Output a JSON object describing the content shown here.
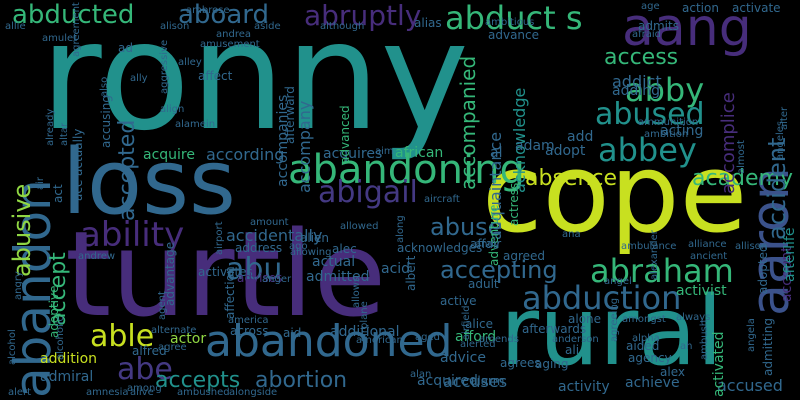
{
  "colors": {
    "background": "#000000",
    "teal": "#21918c",
    "lime": "#c8e020",
    "purple": "#472d7b",
    "blue": "#31688e",
    "green": "#35b779",
    "yellow_green": "#90d743"
  },
  "words": [
    {
      "text": "ronny",
      "color": "#21918c",
      "weight": 100
    },
    {
      "text": "cope",
      "color": "#c8e020",
      "weight": 95
    },
    {
      "text": "turtle",
      "color": "#472d7b",
      "weight": 92
    },
    {
      "text": "loss",
      "color": "#31688e",
      "weight": 90
    },
    {
      "text": "rural",
      "color": "#21918c",
      "weight": 88
    },
    {
      "text": "aang",
      "color": "#472d7b",
      "weight": 60
    },
    {
      "text": "aaron",
      "color": "#3b528b",
      "weight": 58
    },
    {
      "text": "abandoning",
      "color": "#35b779",
      "weight": 56
    },
    {
      "text": "abandoned",
      "color": "#31688e",
      "weight": 54
    },
    {
      "text": "abandon",
      "color": "#31688e",
      "weight": 52
    },
    {
      "text": "abduction",
      "color": "#31688e",
      "weight": 45
    },
    {
      "text": "abraham",
      "color": "#35b779",
      "weight": 45
    },
    {
      "text": "abigail",
      "color": "#443983",
      "weight": 44
    },
    {
      "text": "ability",
      "color": "#472d7b",
      "weight": 43
    },
    {
      "text": "abbey",
      "color": "#21918c",
      "weight": 42
    },
    {
      "text": "abby",
      "color": "#35b779",
      "weight": 42
    },
    {
      "text": "abused",
      "color": "#21918c",
      "weight": 40
    },
    {
      "text": "abduct s",
      "color": "#35b779",
      "weight": 40
    },
    {
      "text": "abducted",
      "color": "#35b779",
      "weight": 38
    },
    {
      "text": "aboard",
      "color": "#31688e",
      "weight": 38
    },
    {
      "text": "abruptly",
      "color": "#472d7b",
      "weight": 36
    },
    {
      "text": "abusive",
      "color": "#90d743",
      "weight": 34
    },
    {
      "text": "able",
      "color": "#c8e020",
      "weight": 34
    },
    {
      "text": "abu",
      "color": "#31688e",
      "weight": 34
    },
    {
      "text": "abe",
      "color": "#443983",
      "weight": 34
    },
    {
      "text": "abuse",
      "color": "#31688e",
      "weight": 30
    },
    {
      "text": "absence",
      "color": "#c8e020",
      "weight": 30
    },
    {
      "text": "academy",
      "color": "#35b779",
      "weight": 28
    },
    {
      "text": "accident",
      "color": "#31688e",
      "weight": 28
    },
    {
      "text": "access",
      "color": "#35b779",
      "weight": 28
    },
    {
      "text": "accepting",
      "color": "#31688e",
      "weight": 26
    },
    {
      "text": "accepts",
      "color": "#21918c",
      "weight": 26
    },
    {
      "text": "abortion",
      "color": "#31688e",
      "weight": 26
    },
    {
      "text": "accept",
      "color": "#35b779",
      "weight": 24
    },
    {
      "text": "accepted",
      "color": "#31688e",
      "weight": 24
    },
    {
      "text": "accused",
      "color": "#31688e",
      "weight": 20
    },
    {
      "text": "accuses",
      "color": "#31688e",
      "weight": 20
    },
    {
      "text": "accompanied",
      "color": "#35b779",
      "weight": 20
    },
    {
      "text": "accomplice",
      "color": "#472d7b",
      "weight": 20
    },
    {
      "text": "accidentally",
      "color": "#31688e",
      "weight": 18
    },
    {
      "text": "according",
      "color": "#31688e",
      "weight": 18
    },
    {
      "text": "acknowledge",
      "color": "#21918c",
      "weight": 18
    },
    {
      "text": "acquaintance",
      "color": "#31688e",
      "weight": 16
    },
    {
      "text": "actress",
      "color": "#35b779",
      "weight": 16
    },
    {
      "text": "adventure",
      "color": "#35b779",
      "weight": 16
    },
    {
      "text": "addict",
      "color": "#31688e",
      "weight": 16
    },
    {
      "text": "adding",
      "color": "#31688e",
      "weight": 16
    },
    {
      "text": "acting",
      "color": "#31688e",
      "weight": 16
    },
    {
      "text": "account",
      "color": "#472d7b",
      "weight": 16
    },
    {
      "text": "afterlife",
      "color": "#21918c",
      "weight": 16
    },
    {
      "text": "accompany",
      "color": "#31688e",
      "weight": 16
    },
    {
      "text": "accompanies",
      "color": "#31688e",
      "weight": 16
    },
    {
      "text": "acid",
      "color": "#31688e",
      "weight": 16
    },
    {
      "text": "acquires",
      "color": "#31688e",
      "weight": 16
    },
    {
      "text": "acquire",
      "color": "#35b779",
      "weight": 16
    },
    {
      "text": "acquired",
      "color": "#31688e",
      "weight": 16
    },
    {
      "text": "activist",
      "color": "#35b779",
      "weight": 16
    },
    {
      "text": "activity",
      "color": "#31688e",
      "weight": 16
    },
    {
      "text": "achieve",
      "color": "#31688e",
      "weight": 16
    },
    {
      "text": "actor",
      "color": "#90d743",
      "weight": 16
    },
    {
      "text": "actual",
      "color": "#31688e",
      "weight": 16
    },
    {
      "text": "admitted",
      "color": "#31688e",
      "weight": 16
    },
    {
      "text": "additional",
      "color": "#31688e",
      "weight": 16
    },
    {
      "text": "advice",
      "color": "#31688e",
      "weight": 16
    },
    {
      "text": "afford",
      "color": "#35b779",
      "weight": 16
    },
    {
      "text": "addition",
      "color": "#c8e020",
      "weight": 16
    },
    {
      "text": "admiral",
      "color": "#31688e",
      "weight": 16
    },
    {
      "text": "african",
      "color": "#35b779",
      "weight": 16
    },
    {
      "text": "adopt",
      "color": "#31688e",
      "weight": 16
    },
    {
      "text": "adam",
      "color": "#31688e",
      "weight": 16
    },
    {
      "text": "al",
      "color": "#31688e",
      "weight": 16
    },
    {
      "text": "add",
      "color": "#31688e",
      "weight": 16
    },
    {
      "text": "advanced",
      "color": "#35b779",
      "weight": 14
    },
    {
      "text": "address",
      "color": "#31688e",
      "weight": 14
    },
    {
      "text": "activates",
      "color": "#31688e",
      "weight": 14
    },
    {
      "text": "advises",
      "color": "#472d7b",
      "weight": 14
    },
    {
      "text": "active",
      "color": "#31688e",
      "weight": 14
    },
    {
      "text": "adult",
      "color": "#31688e",
      "weight": 14
    },
    {
      "text": "affair",
      "color": "#31688e",
      "weight": 14
    },
    {
      "text": "adoptive",
      "color": "#35b779",
      "weight": 14
    },
    {
      "text": "adopted",
      "color": "#31688e",
      "weight": 14
    },
    {
      "text": "activated",
      "color": "#35b779",
      "weight": 14
    },
    {
      "text": "agrees",
      "color": "#31688e",
      "weight": 14
    },
    {
      "text": "aging",
      "color": "#31688e",
      "weight": 14
    },
    {
      "text": "ali",
      "color": "#31688e",
      "weight": 14
    },
    {
      "text": "alarm",
      "color": "#31688e",
      "weight": 14
    },
    {
      "text": "agency",
      "color": "#31688e",
      "weight": 14
    },
    {
      "text": "aided",
      "color": "#31688e",
      "weight": 14
    },
    {
      "text": "alex",
      "color": "#31688e",
      "weight": 14
    },
    {
      "text": "alone",
      "color": "#31688e",
      "weight": 14
    },
    {
      "text": "alien",
      "color": "#31688e",
      "weight": 14
    },
    {
      "text": "alec",
      "color": "#31688e",
      "weight": 14
    },
    {
      "text": "agreed",
      "color": "#31688e",
      "weight": 14
    },
    {
      "text": "acknowledges",
      "color": "#31688e",
      "weight": 14
    },
    {
      "text": "afterwards",
      "color": "#31688e",
      "weight": 14
    },
    {
      "text": "alice",
      "color": "#31688e",
      "weight": 14
    },
    {
      "text": "aid",
      "color": "#31688e",
      "weight": 14
    },
    {
      "text": "across",
      "color": "#31688e",
      "weight": 14
    },
    {
      "text": "ace",
      "color": "#31688e",
      "weight": 14
    },
    {
      "text": "act",
      "color": "#31688e",
      "weight": 14
    },
    {
      "text": "actually",
      "color": "#31688e",
      "weight": 14
    },
    {
      "text": "accusing",
      "color": "#31688e",
      "weight": 14
    },
    {
      "text": "action",
      "color": "#31688e",
      "weight": 14
    },
    {
      "text": "activate",
      "color": "#31688e",
      "weight": 14
    },
    {
      "text": "admits",
      "color": "#31688e",
      "weight": 14
    },
    {
      "text": "advance",
      "color": "#31688e",
      "weight": 14
    },
    {
      "text": "advantage",
      "color": "#31688e",
      "weight": 14
    },
    {
      "text": "affection",
      "color": "#31688e",
      "weight": 14
    },
    {
      "text": "admitting",
      "color": "#31688e",
      "weight": 14
    },
    {
      "text": "affect",
      "color": "#31688e",
      "weight": 14
    },
    {
      "text": "afterward",
      "color": "#31688e",
      "weight": 14
    },
    {
      "text": "alternate",
      "color": "#31688e",
      "weight": 12
    },
    {
      "text": "alfred",
      "color": "#31688e",
      "weight": 12
    },
    {
      "text": "agree",
      "color": "#31688e",
      "weight": 12
    },
    {
      "text": "agent",
      "color": "#31688e",
      "weight": 12
    },
    {
      "text": "alison",
      "color": "#31688e",
      "weight": 12
    },
    {
      "text": "alley",
      "color": "#31688e",
      "weight": 12
    },
    {
      "text": "ally",
      "color": "#31688e",
      "weight": 12
    },
    {
      "text": "allie",
      "color": "#31688e",
      "weight": 12
    },
    {
      "text": "ago",
      "color": "#31688e",
      "weight": 12
    },
    {
      "text": "aim",
      "color": "#31688e",
      "weight": 12
    },
    {
      "text": "alan",
      "color": "#31688e",
      "weight": 12
    },
    {
      "text": "ah",
      "color": "#31688e",
      "weight": 12
    },
    {
      "text": "ad",
      "color": "#31688e",
      "weight": 12
    },
    {
      "text": "age",
      "color": "#31688e",
      "weight": 12
    },
    {
      "text": "aged",
      "color": "#31688e",
      "weight": 12
    },
    {
      "text": "afraid",
      "color": "#31688e",
      "weight": 12
    },
    {
      "text": "alias",
      "color": "#31688e",
      "weight": 12
    },
    {
      "text": "alert",
      "color": "#31688e",
      "weight": 12
    },
    {
      "text": "alerted",
      "color": "#31688e",
      "weight": 12
    },
    {
      "text": "albert",
      "color": "#31688e",
      "weight": 12
    },
    {
      "text": "alexander",
      "color": "#31688e",
      "weight": 12
    },
    {
      "text": "allison",
      "color": "#31688e",
      "weight": 12
    },
    {
      "text": "almost",
      "color": "#31688e",
      "weight": 12
    },
    {
      "text": "along",
      "color": "#31688e",
      "weight": 12
    },
    {
      "text": "allowed",
      "color": "#31688e",
      "weight": 12
    },
    {
      "text": "allows",
      "color": "#31688e",
      "weight": 12
    },
    {
      "text": "allowing",
      "color": "#31688e",
      "weight": 12
    },
    {
      "text": "alcohol",
      "color": "#31688e",
      "weight": 12
    },
    {
      "text": "alcoholic",
      "color": "#31688e",
      "weight": 12
    },
    {
      "text": "alliance",
      "color": "#31688e",
      "weight": 12
    },
    {
      "text": "aircraft",
      "color": "#31688e",
      "weight": 12
    },
    {
      "text": "airfield",
      "color": "#31688e",
      "weight": 12
    },
    {
      "text": "airport",
      "color": "#31688e",
      "weight": 12
    },
    {
      "text": "airplane",
      "color": "#31688e",
      "weight": 12
    },
    {
      "text": "agreement",
      "color": "#31688e",
      "weight": 12
    },
    {
      "text": "alive",
      "color": "#31688e",
      "weight": 12
    },
    {
      "text": "ambushed",
      "color": "#31688e",
      "weight": 10
    },
    {
      "text": "alongside",
      "color": "#31688e",
      "weight": 10
    },
    {
      "text": "amnesia",
      "color": "#31688e",
      "weight": 10
    },
    {
      "text": "anderson",
      "color": "#31688e",
      "weight": 10
    },
    {
      "text": "amongst",
      "color": "#31688e",
      "weight": 10
    },
    {
      "text": "always",
      "color": "#31688e",
      "weight": 10
    },
    {
      "text": "alpha",
      "color": "#31688e",
      "weight": 10
    },
    {
      "text": "ambulance",
      "color": "#31688e",
      "weight": 10
    },
    {
      "text": "america",
      "color": "#31688e",
      "weight": 10
    },
    {
      "text": "american",
      "color": "#31688e",
      "weight": 10
    },
    {
      "text": "ambush",
      "color": "#31688e",
      "weight": 10
    },
    {
      "text": "angela",
      "color": "#31688e",
      "weight": 10
    },
    {
      "text": "angel",
      "color": "#31688e",
      "weight": 10
    },
    {
      "text": "angeles",
      "color": "#31688e",
      "weight": 10
    },
    {
      "text": "angry",
      "color": "#31688e",
      "weight": 10
    },
    {
      "text": "andrea",
      "color": "#31688e",
      "weight": 10
    },
    {
      "text": "andrew",
      "color": "#31688e",
      "weight": 10
    },
    {
      "text": "andy",
      "color": "#31688e",
      "weight": 10
    },
    {
      "text": "ana",
      "color": "#31688e",
      "weight": 10
    },
    {
      "text": "amount",
      "color": "#31688e",
      "weight": 10
    },
    {
      "text": "among",
      "color": "#31688e",
      "weight": 10
    },
    {
      "text": "amusement",
      "color": "#31688e",
      "weight": 10
    },
    {
      "text": "ambrose",
      "color": "#31688e",
      "weight": 10
    },
    {
      "text": "ambitious",
      "color": "#31688e",
      "weight": 10
    },
    {
      "text": "ambition",
      "color": "#31688e",
      "weight": 10
    },
    {
      "text": "ammunition",
      "color": "#31688e",
      "weight": 10
    },
    {
      "text": "amulet",
      "color": "#31688e",
      "weight": 10
    },
    {
      "text": "amends",
      "color": "#31688e",
      "weight": 10
    },
    {
      "text": "ancient",
      "color": "#31688e",
      "weight": 10
    },
    {
      "text": "anger",
      "color": "#31688e",
      "weight": 10
    },
    {
      "text": "alter",
      "color": "#31688e",
      "weight": 10
    },
    {
      "text": "altar",
      "color": "#31688e",
      "weight": 10
    },
    {
      "text": "although",
      "color": "#31688e",
      "weight": 10
    },
    {
      "text": "aside",
      "color": "#31688e",
      "weight": 10
    },
    {
      "text": "align",
      "color": "#31688e",
      "weight": 10
    },
    {
      "text": "alamein",
      "color": "#31688e",
      "weight": 10
    },
    {
      "text": "already",
      "color": "#31688e",
      "weight": 10
    },
    {
      "text": "also",
      "color": "#31688e",
      "weight": 10
    },
    {
      "text": "air",
      "color": "#31688e",
      "weight": 10
    },
    {
      "text": "aggressive",
      "color": "#31688e",
      "weight": 10
    },
    {
      "text": "agreeing",
      "color": "#31688e",
      "weight": 10
    },
    {
      "text": "aftermath",
      "color": "#31688e",
      "weight": 10
    },
    {
      "text": "aired",
      "color": "#31688e",
      "weight": 10
    },
    {
      "text": "albright",
      "color": "#31688e",
      "weight": 10
    }
  ]
}
